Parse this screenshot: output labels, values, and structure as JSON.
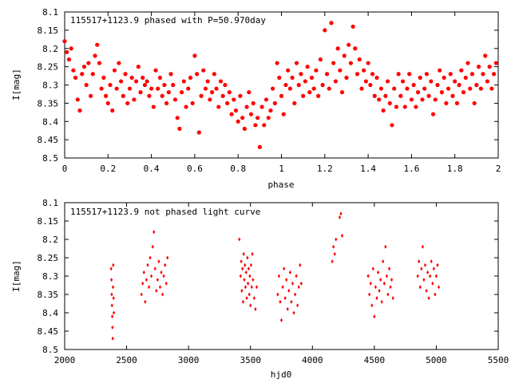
{
  "colors": {
    "series": "#ff0000",
    "axis": "#000000",
    "background": "#ffffff"
  },
  "chart_data": [
    {
      "type": "scatter",
      "title": "115517+1123.9 phased with P=50.970day",
      "xlabel": "phase",
      "ylabel": "I[mag]",
      "xlim": [
        0,
        2
      ],
      "ylim": [
        8.1,
        8.5
      ],
      "y_inverted": true,
      "grid": false,
      "legend": "none",
      "marker": "filled-circle",
      "x_ticks": [
        "0",
        "0.2",
        "0.4",
        "0.6",
        "0.8",
        "1",
        "1.2",
        "1.4",
        "1.6",
        "1.8",
        "2"
      ],
      "y_ticks": [
        "8.1",
        "8.15",
        "8.2",
        "8.25",
        "8.3",
        "8.35",
        "8.4",
        "8.45",
        "8.5"
      ],
      "points": [
        [
          0.0,
          8.18
        ],
        [
          0.01,
          8.21
        ],
        [
          0.02,
          8.23
        ],
        [
          0.03,
          8.2
        ],
        [
          0.04,
          8.26
        ],
        [
          0.05,
          8.28
        ],
        [
          0.06,
          8.34
        ],
        [
          0.07,
          8.37
        ],
        [
          0.08,
          8.27
        ],
        [
          0.09,
          8.25
        ],
        [
          0.1,
          8.3
        ],
        [
          0.11,
          8.24
        ],
        [
          0.12,
          8.33
        ],
        [
          0.13,
          8.27
        ],
        [
          0.14,
          8.22
        ],
        [
          0.15,
          8.19
        ],
        [
          0.16,
          8.24
        ],
        [
          0.17,
          8.31
        ],
        [
          0.18,
          8.28
        ],
        [
          0.19,
          8.33
        ],
        [
          0.2,
          8.35
        ],
        [
          0.21,
          8.3
        ],
        [
          0.22,
          8.37
        ],
        [
          0.23,
          8.26
        ],
        [
          0.24,
          8.31
        ],
        [
          0.25,
          8.24
        ],
        [
          0.26,
          8.29
        ],
        [
          0.27,
          8.33
        ],
        [
          0.28,
          8.27
        ],
        [
          0.29,
          8.35
        ],
        [
          0.3,
          8.31
        ],
        [
          0.31,
          8.28
        ],
        [
          0.32,
          8.34
        ],
        [
          0.33,
          8.29
        ],
        [
          0.34,
          8.25
        ],
        [
          0.35,
          8.32
        ],
        [
          0.36,
          8.28
        ],
        [
          0.37,
          8.3
        ],
        [
          0.38,
          8.29
        ],
        [
          0.39,
          8.33
        ],
        [
          0.4,
          8.31
        ],
        [
          0.41,
          8.36
        ],
        [
          0.42,
          8.26
        ],
        [
          0.43,
          8.31
        ],
        [
          0.44,
          8.28
        ],
        [
          0.45,
          8.33
        ],
        [
          0.46,
          8.3
        ],
        [
          0.47,
          8.35
        ],
        [
          0.48,
          8.32
        ],
        [
          0.49,
          8.27
        ],
        [
          0.5,
          8.3
        ],
        [
          0.51,
          8.34
        ],
        [
          0.52,
          8.39
        ],
        [
          0.53,
          8.42
        ],
        [
          0.54,
          8.32
        ],
        [
          0.55,
          8.29
        ],
        [
          0.56,
          8.36
        ],
        [
          0.57,
          8.31
        ],
        [
          0.58,
          8.28
        ],
        [
          0.59,
          8.35
        ],
        [
          0.6,
          8.22
        ],
        [
          0.61,
          8.27
        ],
        [
          0.62,
          8.43
        ],
        [
          0.63,
          8.33
        ],
        [
          0.64,
          8.26
        ],
        [
          0.65,
          8.31
        ],
        [
          0.66,
          8.29
        ],
        [
          0.67,
          8.34
        ],
        [
          0.68,
          8.32
        ],
        [
          0.69,
          8.27
        ],
        [
          0.7,
          8.31
        ],
        [
          0.71,
          8.36
        ],
        [
          0.72,
          8.29
        ],
        [
          0.73,
          8.33
        ],
        [
          0.74,
          8.3
        ],
        [
          0.75,
          8.35
        ],
        [
          0.76,
          8.32
        ],
        [
          0.77,
          8.38
        ],
        [
          0.78,
          8.34
        ],
        [
          0.79,
          8.37
        ],
        [
          0.8,
          8.4
        ],
        [
          0.81,
          8.33
        ],
        [
          0.82,
          8.39
        ],
        [
          0.83,
          8.42
        ],
        [
          0.84,
          8.36
        ],
        [
          0.85,
          8.32
        ],
        [
          0.86,
          8.38
        ],
        [
          0.87,
          8.35
        ],
        [
          0.88,
          8.41
        ],
        [
          0.89,
          8.39
        ],
        [
          0.9,
          8.47
        ],
        [
          0.91,
          8.36
        ],
        [
          0.92,
          8.41
        ],
        [
          0.93,
          8.34
        ],
        [
          0.94,
          8.39
        ],
        [
          0.95,
          8.37
        ],
        [
          0.96,
          8.31
        ],
        [
          0.97,
          8.35
        ],
        [
          0.98,
          8.24
        ],
        [
          0.99,
          8.28
        ],
        [
          1.0,
          8.33
        ],
        [
          1.01,
          8.38
        ],
        [
          1.02,
          8.3
        ],
        [
          1.03,
          8.26
        ],
        [
          1.04,
          8.31
        ],
        [
          1.05,
          8.28
        ],
        [
          1.06,
          8.35
        ],
        [
          1.07,
          8.24
        ],
        [
          1.08,
          8.3
        ],
        [
          1.09,
          8.27
        ],
        [
          1.1,
          8.33
        ],
        [
          1.11,
          8.29
        ],
        [
          1.12,
          8.25
        ],
        [
          1.13,
          8.32
        ],
        [
          1.14,
          8.28
        ],
        [
          1.15,
          8.31
        ],
        [
          1.16,
          8.26
        ],
        [
          1.17,
          8.33
        ],
        [
          1.18,
          8.23
        ],
        [
          1.19,
          8.3
        ],
        [
          1.2,
          8.15
        ],
        [
          1.21,
          8.27
        ],
        [
          1.22,
          8.31
        ],
        [
          1.23,
          8.13
        ],
        [
          1.24,
          8.24
        ],
        [
          1.25,
          8.29
        ],
        [
          1.26,
          8.2
        ],
        [
          1.27,
          8.26
        ],
        [
          1.28,
          8.32
        ],
        [
          1.29,
          8.22
        ],
        [
          1.3,
          8.28
        ],
        [
          1.31,
          8.19
        ],
        [
          1.32,
          8.24
        ],
        [
          1.33,
          8.14
        ],
        [
          1.34,
          8.2
        ],
        [
          1.35,
          8.27
        ],
        [
          1.36,
          8.23
        ],
        [
          1.37,
          8.31
        ],
        [
          1.38,
          8.26
        ],
        [
          1.39,
          8.29
        ],
        [
          1.4,
          8.24
        ],
        [
          1.41,
          8.3
        ],
        [
          1.42,
          8.27
        ],
        [
          1.43,
          8.33
        ],
        [
          1.44,
          8.28
        ],
        [
          1.45,
          8.34
        ],
        [
          1.46,
          8.31
        ],
        [
          1.47,
          8.37
        ],
        [
          1.48,
          8.33
        ],
        [
          1.49,
          8.29
        ],
        [
          1.5,
          8.35
        ],
        [
          1.51,
          8.41
        ],
        [
          1.52,
          8.31
        ],
        [
          1.53,
          8.36
        ],
        [
          1.54,
          8.27
        ],
        [
          1.55,
          8.33
        ],
        [
          1.56,
          8.29
        ],
        [
          1.57,
          8.36
        ],
        [
          1.58,
          8.31
        ],
        [
          1.59,
          8.27
        ],
        [
          1.6,
          8.34
        ],
        [
          1.61,
          8.3
        ],
        [
          1.62,
          8.36
        ],
        [
          1.63,
          8.32
        ],
        [
          1.64,
          8.28
        ],
        [
          1.65,
          8.34
        ],
        [
          1.66,
          8.31
        ],
        [
          1.67,
          8.27
        ],
        [
          1.68,
          8.33
        ],
        [
          1.69,
          8.29
        ],
        [
          1.7,
          8.38
        ],
        [
          1.71,
          8.34
        ],
        [
          1.72,
          8.3
        ],
        [
          1.73,
          8.26
        ],
        [
          1.74,
          8.32
        ],
        [
          1.75,
          8.28
        ],
        [
          1.76,
          8.35
        ],
        [
          1.77,
          8.31
        ],
        [
          1.78,
          8.27
        ],
        [
          1.79,
          8.33
        ],
        [
          1.8,
          8.29
        ],
        [
          1.81,
          8.35
        ],
        [
          1.82,
          8.3
        ],
        [
          1.83,
          8.26
        ],
        [
          1.84,
          8.32
        ],
        [
          1.85,
          8.28
        ],
        [
          1.86,
          8.24
        ],
        [
          1.87,
          8.31
        ],
        [
          1.88,
          8.27
        ],
        [
          1.89,
          8.35
        ],
        [
          1.9,
          8.3
        ],
        [
          1.91,
          8.25
        ],
        [
          1.92,
          8.31
        ],
        [
          1.93,
          8.27
        ],
        [
          1.94,
          8.22
        ],
        [
          1.95,
          8.29
        ],
        [
          1.96,
          8.25
        ],
        [
          1.97,
          8.31
        ],
        [
          1.98,
          8.27
        ],
        [
          1.99,
          8.24
        ]
      ]
    },
    {
      "type": "scatter",
      "title": "115517+1123.9 not phased light curve",
      "xlabel": "hjd0",
      "ylabel": "I[mag]",
      "xlim": [
        2000,
        5500
      ],
      "ylim": [
        8.1,
        8.5
      ],
      "y_inverted": true,
      "grid": false,
      "legend": "none",
      "marker": "small-diamond",
      "x_ticks": [
        "2000",
        "2500",
        "3000",
        "3500",
        "4000",
        "4500",
        "5000",
        "5500"
      ],
      "y_ticks": [
        "8.1",
        "8.15",
        "8.2",
        "8.25",
        "8.3",
        "8.35",
        "8.4",
        "8.45",
        "8.5"
      ],
      "points": [
        [
          2375,
          8.28
        ],
        [
          2378,
          8.31
        ],
        [
          2380,
          8.35
        ],
        [
          2382,
          8.38
        ],
        [
          2384,
          8.41
        ],
        [
          2386,
          8.44
        ],
        [
          2388,
          8.47
        ],
        [
          2390,
          8.33
        ],
        [
          2392,
          8.27
        ],
        [
          2395,
          8.36
        ],
        [
          2397,
          8.4
        ],
        [
          2620,
          8.35
        ],
        [
          2630,
          8.32
        ],
        [
          2640,
          8.29
        ],
        [
          2650,
          8.37
        ],
        [
          2660,
          8.31
        ],
        [
          2670,
          8.27
        ],
        [
          2680,
          8.33
        ],
        [
          2690,
          8.25
        ],
        [
          2700,
          8.3
        ],
        [
          2710,
          8.22
        ],
        [
          2720,
          8.18
        ],
        [
          2730,
          8.28
        ],
        [
          2740,
          8.34
        ],
        [
          2750,
          8.31
        ],
        [
          2760,
          8.26
        ],
        [
          2770,
          8.33
        ],
        [
          2780,
          8.29
        ],
        [
          2790,
          8.35
        ],
        [
          2800,
          8.3
        ],
        [
          2810,
          8.27
        ],
        [
          2820,
          8.32
        ],
        [
          2830,
          8.25
        ],
        [
          3410,
          8.2
        ],
        [
          3420,
          8.3
        ],
        [
          3425,
          8.26
        ],
        [
          3430,
          8.34
        ],
        [
          3435,
          8.28
        ],
        [
          3440,
          8.37
        ],
        [
          3445,
          8.24
        ],
        [
          3450,
          8.31
        ],
        [
          3455,
          8.27
        ],
        [
          3460,
          8.33
        ],
        [
          3465,
          8.29
        ],
        [
          3470,
          8.36
        ],
        [
          3475,
          8.25
        ],
        [
          3480,
          8.32
        ],
        [
          3485,
          8.28
        ],
        [
          3490,
          8.35
        ],
        [
          3495,
          8.3
        ],
        [
          3500,
          8.38
        ],
        [
          3505,
          8.27
        ],
        [
          3510,
          8.33
        ],
        [
          3515,
          8.24
        ],
        [
          3520,
          8.31
        ],
        [
          3530,
          8.36
        ],
        [
          3540,
          8.39
        ],
        [
          3550,
          8.33
        ],
        [
          3720,
          8.35
        ],
        [
          3730,
          8.3
        ],
        [
          3740,
          8.37
        ],
        [
          3750,
          8.42
        ],
        [
          3760,
          8.33
        ],
        [
          3770,
          8.28
        ],
        [
          3780,
          8.36
        ],
        [
          3790,
          8.31
        ],
        [
          3800,
          8.39
        ],
        [
          3810,
          8.34
        ],
        [
          3820,
          8.29
        ],
        [
          3830,
          8.37
        ],
        [
          3840,
          8.32
        ],
        [
          3850,
          8.4
        ],
        [
          3860,
          8.35
        ],
        [
          3870,
          8.3
        ],
        [
          3880,
          8.38
        ],
        [
          3890,
          8.33
        ],
        [
          3900,
          8.27
        ],
        [
          3910,
          8.32
        ],
        [
          4160,
          8.26
        ],
        [
          4170,
          8.22
        ],
        [
          4180,
          8.24
        ],
        [
          4190,
          8.2
        ],
        [
          4220,
          8.14
        ],
        [
          4230,
          8.13
        ],
        [
          4240,
          8.19
        ],
        [
          4450,
          8.3
        ],
        [
          4460,
          8.35
        ],
        [
          4470,
          8.32
        ],
        [
          4480,
          8.38
        ],
        [
          4490,
          8.28
        ],
        [
          4500,
          8.41
        ],
        [
          4510,
          8.33
        ],
        [
          4520,
          8.36
        ],
        [
          4530,
          8.29
        ],
        [
          4540,
          8.34
        ],
        [
          4550,
          8.31
        ],
        [
          4560,
          8.37
        ],
        [
          4570,
          8.26
        ],
        [
          4580,
          8.32
        ],
        [
          4590,
          8.22
        ],
        [
          4600,
          8.3
        ],
        [
          4610,
          8.35
        ],
        [
          4620,
          8.28
        ],
        [
          4630,
          8.33
        ],
        [
          4640,
          8.31
        ],
        [
          4650,
          8.36
        ],
        [
          4850,
          8.3
        ],
        [
          4860,
          8.26
        ],
        [
          4870,
          8.33
        ],
        [
          4880,
          8.28
        ],
        [
          4890,
          8.22
        ],
        [
          4900,
          8.31
        ],
        [
          4910,
          8.27
        ],
        [
          4920,
          8.34
        ],
        [
          4930,
          8.29
        ],
        [
          4940,
          8.36
        ],
        [
          4950,
          8.3
        ],
        [
          4960,
          8.26
        ],
        [
          4970,
          8.32
        ],
        [
          4980,
          8.28
        ],
        [
          4990,
          8.35
        ],
        [
          5000,
          8.3
        ],
        [
          5010,
          8.27
        ],
        [
          5020,
          8.33
        ]
      ]
    }
  ]
}
